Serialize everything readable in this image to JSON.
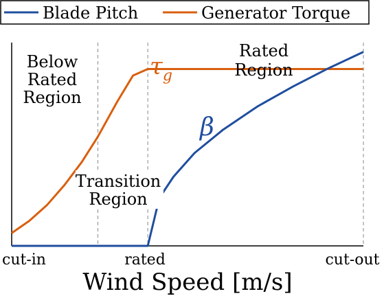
{
  "chart_data": {
    "type": "line",
    "title": "",
    "xlabel": "Wind Speed [m/s]",
    "ylabel": "",
    "x_ticks": [
      {
        "x": 0,
        "label": "cut-in"
      },
      {
        "x": 0.387,
        "label": "rated"
      },
      {
        "x": 1,
        "label": "cut-out"
      }
    ],
    "xlim": [
      0,
      1
    ],
    "ylim": [
      0,
      1
    ],
    "legend_position": "top",
    "series": [
      {
        "name": "Blade Pitch",
        "symbol": "β",
        "color": "#1f4e9e",
        "x": [
          0,
          0.387,
          0.42,
          0.46,
          0.52,
          0.6,
          0.7,
          0.8,
          0.9,
          1.0
        ],
        "y": [
          0,
          0,
          0.236,
          0.34,
          0.457,
          0.57,
          0.687,
          0.784,
          0.873,
          0.954
        ]
      },
      {
        "name": "Generator Torque",
        "symbol": "τ_g",
        "color": "#d95f0e",
        "x": [
          0,
          0.05,
          0.1,
          0.15,
          0.2,
          0.245,
          0.3,
          0.345,
          0.387,
          1.0
        ],
        "y": [
          0.063,
          0.123,
          0.2,
          0.299,
          0.414,
          0.537,
          0.709,
          0.838,
          0.87,
          0.87
        ]
      }
    ],
    "region_boundaries": [
      0.245,
      0.387,
      1.0
    ],
    "region_labels": {
      "below": [
        "Below",
        "Rated",
        "Region"
      ],
      "transition": [
        "Transition",
        "Region"
      ],
      "rated": [
        "Rated",
        "Region"
      ]
    }
  }
}
